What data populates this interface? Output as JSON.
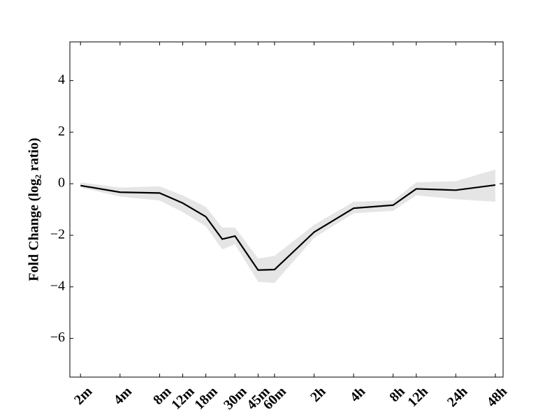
{
  "chart_data": {
    "type": "line",
    "y_label": "Fold Change (log₂ ratio)",
    "x": [
      2,
      4,
      8,
      12,
      18,
      24,
      30,
      45,
      60,
      120,
      240,
      480,
      720,
      1440,
      2880
    ],
    "values": [
      -0.07,
      -0.33,
      -0.36,
      -0.75,
      -1.28,
      -2.15,
      -2.03,
      -3.35,
      -3.33,
      -1.88,
      -0.95,
      -0.83,
      -0.2,
      -0.25,
      -0.05
    ],
    "upper": [
      0.05,
      -0.15,
      -0.1,
      -0.45,
      -0.9,
      -1.7,
      -1.7,
      -2.9,
      -2.8,
      -1.6,
      -0.7,
      -0.65,
      0.05,
      0.1,
      0.55
    ],
    "lower": [
      -0.15,
      -0.5,
      -0.65,
      -1.1,
      -1.65,
      -2.55,
      -2.35,
      -3.8,
      -3.85,
      -2.1,
      -1.15,
      -1.05,
      -0.45,
      -0.6,
      -0.7
    ],
    "color": "#000000",
    "band_color": "#e5e5e5",
    "xscale": "log2",
    "xlim": [
      1.66,
      3300
    ],
    "xticks": [
      {
        "value": 2,
        "label": "2m"
      },
      {
        "value": 4,
        "label": "4m"
      },
      {
        "value": 8,
        "label": "8m"
      },
      {
        "value": 12,
        "label": "12m"
      },
      {
        "value": 18,
        "label": "18m"
      },
      {
        "value": 30,
        "label": "30m"
      },
      {
        "value": 45,
        "label": "45m"
      },
      {
        "value": 60,
        "label": "60m"
      },
      {
        "value": 120,
        "label": "2h"
      },
      {
        "value": 240,
        "label": "4h"
      },
      {
        "value": 480,
        "label": "8h"
      },
      {
        "value": 720,
        "label": "12h"
      },
      {
        "value": 1440,
        "label": "24h"
      },
      {
        "value": 2880,
        "label": "48h"
      }
    ],
    "ylim": [
      -7.5,
      5.5
    ],
    "yticks": [
      {
        "value": -6,
        "label": "−6"
      },
      {
        "value": -4,
        "label": "−4"
      },
      {
        "value": -2,
        "label": "−2"
      },
      0,
      2,
      4
    ]
  }
}
